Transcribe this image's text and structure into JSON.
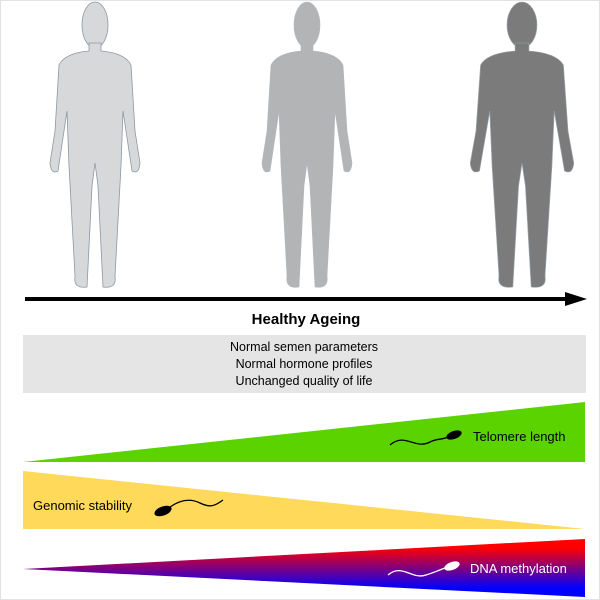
{
  "title": "Healthy Ageing",
  "box_lines": [
    "Normal semen parameters",
    "Normal hormone profiles",
    "Unchanged quality of life"
  ],
  "wedges": {
    "telomere": {
      "label": "Telomere length",
      "color": "#5bd300",
      "trend": "increasing"
    },
    "genomic": {
      "label": "Genomic stability",
      "color": "#ffd95a",
      "trend": "decreasing"
    },
    "methylation": {
      "label": "DNA methylation",
      "colors": [
        "#ff0000",
        "#0000ff"
      ],
      "trend": "increasing"
    }
  },
  "figures": [
    {
      "name": "young-man",
      "color": "#d6d8da"
    },
    {
      "name": "middle-aged-man",
      "color": "#b3b4b5"
    },
    {
      "name": "old-man",
      "color": "#7b7b7b"
    }
  ],
  "icons": [
    "human-silhouette-icon",
    "arrow-right-icon",
    "sperm-icon"
  ]
}
